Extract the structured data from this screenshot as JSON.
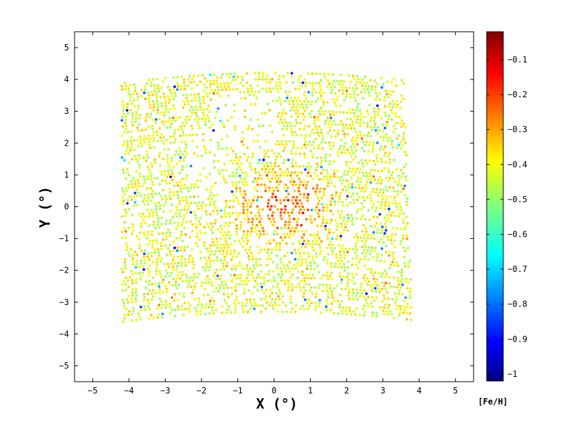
{
  "chart_data": {
    "type": "scatter",
    "xlabel": "X (°)",
    "ylabel": "Y (°)",
    "xlim": [
      -5.5,
      5.5
    ],
    "ylim": [
      -5.5,
      5.5
    ],
    "x_ticks": [
      "−5",
      "−4",
      "−3",
      "−2",
      "−1",
      "0",
      "1",
      "2",
      "3",
      "4",
      "5"
    ],
    "y_ticks": [
      "5",
      "4",
      "3",
      "2",
      "1",
      "0",
      "−1",
      "−2",
      "−3",
      "−4",
      "−5"
    ],
    "grid": false,
    "colorbar": {
      "label": "[Fe/H]",
      "range": [
        -1.02,
        -0.02
      ],
      "ticks": [
        "−0.1",
        "−0.2",
        "−0.3",
        "−0.4",
        "−0.5",
        "−0.6",
        "−0.7",
        "−0.8",
        "−0.9",
        "−1"
      ],
      "colormap": "jet"
    },
    "field": {
      "x_range": [
        -4.2,
        3.8
      ],
      "y_range": [
        -3.3,
        4.2
      ],
      "fe_h_typical_outer": -0.42,
      "fe_h_typical_center": -0.22,
      "center": [
        0.3,
        0.0
      ]
    }
  },
  "colors": {
    "jet_stops": [
      "#00007f",
      "#0000ff",
      "#00ffff",
      "#7fff7f",
      "#ffff00",
      "#ff0000",
      "#7f0000"
    ]
  }
}
